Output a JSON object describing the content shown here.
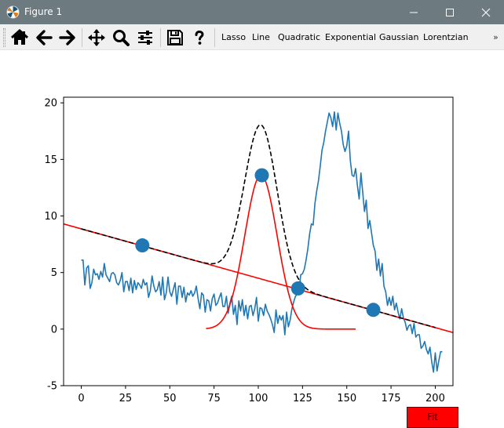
{
  "window": {
    "title": "Figure 1"
  },
  "toolbar": {
    "tools": [
      {
        "name": "home-icon"
      },
      {
        "name": "back-arrow-icon"
      },
      {
        "name": "forward-arrow-icon"
      },
      {
        "name": "pan-move-icon"
      },
      {
        "name": "zoom-magnifier-icon"
      },
      {
        "name": "configure-sliders-icon"
      },
      {
        "name": "save-floppy-icon"
      },
      {
        "name": "help-question-icon"
      }
    ],
    "labels": [
      "Lasso",
      "Line",
      "Quadratic",
      "Exponential",
      "Gaussian",
      "Lorentzian"
    ],
    "overflow": "»"
  },
  "fit_button": {
    "label": "Fit",
    "color": "#ff0000"
  },
  "chart_data": {
    "type": "line",
    "xlim": [
      -10,
      210
    ],
    "ylim": [
      -5,
      20.5
    ],
    "xticks": [
      0,
      25,
      50,
      75,
      100,
      125,
      150,
      175,
      200
    ],
    "yticks": [
      -5,
      0,
      5,
      10,
      15,
      20
    ],
    "grid": false,
    "colors": {
      "data": "#1f77b4",
      "line_fit": "#ff0000",
      "gaussian": "#ff0000",
      "sum": "#000000",
      "markers": "#1f77b4"
    },
    "series": [
      {
        "type": "line",
        "style": "solid",
        "color": "#1f77b4",
        "x_start": 0,
        "x_step": 1,
        "values": [
          6.1,
          6.1,
          3.9,
          5.4,
          5.6,
          3.6,
          4.1,
          5.3,
          4.8,
          4.9,
          4.4,
          5.1,
          4.6,
          5.8,
          4.8,
          4.5,
          4.2,
          4.9,
          5.0,
          4.8,
          4.1,
          3.9,
          4.3,
          5.0,
          3.3,
          4.2,
          4.2,
          3.4,
          4.5,
          3.2,
          4.3,
          3.5,
          4.1,
          3.9,
          3.6,
          4.4,
          3.9,
          4.1,
          2.8,
          3.4,
          4.7,
          3.8,
          3.3,
          3.5,
          4.2,
          3.0,
          4.6,
          2.6,
          3.2,
          4.6,
          3.3,
          2.9,
          3.5,
          4.1,
          2.2,
          3.8,
          3.8,
          2.8,
          3.7,
          2.4,
          3.2,
          3.0,
          3.4,
          2.9,
          3.2,
          3.8,
          2.7,
          1.8,
          3.2,
          3.0,
          1.5,
          2.6,
          2.5,
          1.6,
          2.7,
          3.1,
          2.1,
          2.3,
          2.8,
          3.2,
          2.0,
          2.0,
          2.9,
          1.4,
          2.3,
          2.9,
          1.3,
          2.1,
          0.4,
          2.5,
          1.6,
          2.6,
          1.2,
          2.1,
          0.9,
          2.0,
          2.1,
          1.2,
          1.8,
          2.8,
          0.7,
          1.9,
          1.8,
          1.2,
          2.2,
          1.6,
          1.3,
          0.9,
          0.4,
          -0.3,
          1.7,
          0.5,
          1.2,
          0.8,
          1.2,
          -0.5,
          1.5,
          0.2,
          0.8,
          1.8,
          2.4,
          2.9,
          3.1,
          3.5,
          4.8,
          4.9,
          5.3,
          6.1,
          7.1,
          8.4,
          9.3,
          9.2,
          11.1,
          12.2,
          13.1,
          14.4,
          15.8,
          16.5,
          17.5,
          18.3,
          19.1,
          18.7,
          17.9,
          19.2,
          17.6,
          19.1,
          18.2,
          17.5,
          16.3,
          15.7,
          16.2,
          17.5,
          14.9,
          13.6,
          13.5,
          14.2,
          12.7,
          11.5,
          13.8,
          12.1,
          10.4,
          11.4,
          8.9,
          9.6,
          8.5,
          7.4,
          6.9,
          5.2,
          6.2,
          4.7,
          5.8,
          3.8,
          3.3,
          2.1,
          2.8,
          2.1,
          2.9,
          1.7,
          2.3,
          1.5,
          0.9,
          1.8,
          1.0,
          0.6,
          -0.1,
          0.3,
          0.4,
          -0.4,
          0.5,
          -0.7,
          -0.5,
          -0.5,
          -1.7,
          -1.5,
          -1.1,
          -1.8,
          -2.2,
          -1.6,
          -2.9,
          -3.8,
          -2.1,
          -3.7,
          -2.8,
          -2.0,
          -2.0
        ]
      },
      {
        "type": "line",
        "style": "solid",
        "color": "#ff0000",
        "x": [
          -10,
          210
        ],
        "values": [
          9.3,
          -0.3
        ]
      },
      {
        "type": "line",
        "style": "solid",
        "color": "#ff0000",
        "gaussian": {
          "amplitude": 13.62,
          "center": 101.5,
          "sigma": 9.15,
          "x_from": 70.5,
          "x_to": 155
        }
      },
      {
        "type": "line",
        "style": "dashed",
        "color": "#000000",
        "line_plus_gaussian": {
          "slope": -0.0436,
          "intercept": 8.86,
          "amplitude": 13.62,
          "center": 101.5,
          "sigma": 9.15,
          "x_from": 0,
          "x_to": 200
        }
      },
      {
        "type": "scatter",
        "color": "#1f77b4",
        "x": [
          34.5,
          102.0,
          122.5,
          165.0
        ],
        "values": [
          7.4,
          13.6,
          3.6,
          1.7
        ]
      }
    ]
  }
}
